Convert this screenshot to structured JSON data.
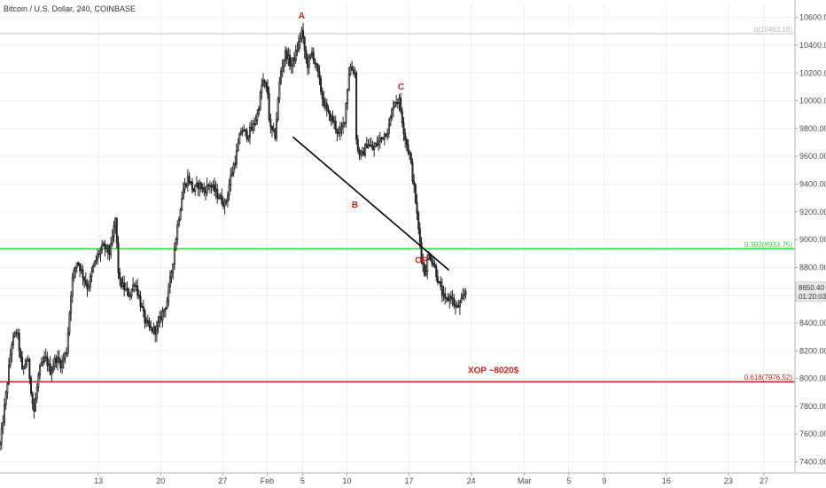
{
  "chart_data": {
    "type": "candlestick",
    "title": "Bitcoin / U.S. Dollar, 240, COINBASE",
    "ylim": [
      7320,
      10700
    ],
    "y_ticks": [
      7400,
      7600,
      7800,
      8000,
      8200,
      8400,
      8600,
      8800,
      9000,
      9200,
      9400,
      9600,
      9800,
      10000,
      10200,
      10400,
      10600
    ],
    "y_tick_labels": [
      "7400.00",
      "7600.00",
      "7800.00",
      "8000.00",
      "8200.00",
      "8400.00",
      "8600.00",
      "8800.00",
      "9000.00",
      "9200.00",
      "9400.00",
      "9600.00",
      "9800.00",
      "10000.00",
      "10200.00",
      "10400.00",
      "10600.00"
    ],
    "x_tick_labels": [
      "13",
      "20",
      "27",
      "Feb",
      "5",
      "10",
      "17",
      "24",
      "Mar",
      "5",
      "9",
      "16",
      "23",
      "27"
    ],
    "x_tick_days": [
      12,
      19,
      26,
      31,
      35,
      40,
      47,
      54,
      60,
      65,
      69,
      76,
      83,
      87
    ],
    "x_range_days": [
      0.9,
      90.5
    ],
    "price_path": [
      [
        0.9,
        7520
      ],
      [
        1.6,
        7900
      ],
      [
        2.2,
        8250
      ],
      [
        2.8,
        8350
      ],
      [
        3.4,
        8050
      ],
      [
        4.0,
        8150
      ],
      [
        4.7,
        7750
      ],
      [
        5.3,
        8050
      ],
      [
        6.0,
        8150
      ],
      [
        6.6,
        8050
      ],
      [
        7.2,
        8150
      ],
      [
        7.8,
        8100
      ],
      [
        8.4,
        8200
      ],
      [
        9.0,
        8700
      ],
      [
        9.6,
        8850
      ],
      [
        10.2,
        8750
      ],
      [
        10.8,
        8650
      ],
      [
        11.4,
        8800
      ],
      [
        12.0,
        8900
      ],
      [
        12.6,
        8950
      ],
      [
        13.3,
        8900
      ],
      [
        13.9,
        9150
      ],
      [
        14.3,
        8700
      ],
      [
        14.9,
        8650
      ],
      [
        15.5,
        8600
      ],
      [
        16.1,
        8700
      ],
      [
        16.7,
        8550
      ],
      [
        17.3,
        8400
      ],
      [
        17.9,
        8350
      ],
      [
        18.5,
        8350
      ],
      [
        19.1,
        8450
      ],
      [
        19.7,
        8550
      ],
      [
        20.3,
        8800
      ],
      [
        20.9,
        9100
      ],
      [
        21.5,
        9350
      ],
      [
        22.1,
        9450
      ],
      [
        22.7,
        9350
      ],
      [
        23.3,
        9400
      ],
      [
        23.9,
        9350
      ],
      [
        24.5,
        9400
      ],
      [
        25.1,
        9350
      ],
      [
        25.7,
        9300
      ],
      [
        26.3,
        9250
      ],
      [
        26.9,
        9450
      ],
      [
        27.5,
        9600
      ],
      [
        28.1,
        9800
      ],
      [
        28.7,
        9750
      ],
      [
        29.3,
        9800
      ],
      [
        29.9,
        9900
      ],
      [
        30.5,
        10150
      ],
      [
        31.1,
        10050
      ],
      [
        31.3,
        9800
      ],
      [
        31.9,
        9750
      ],
      [
        32.5,
        10200
      ],
      [
        33.1,
        10350
      ],
      [
        33.7,
        10250
      ],
      [
        34.3,
        10350
      ],
      [
        34.9,
        10500
      ],
      [
        35.5,
        10250
      ],
      [
        36.1,
        10350
      ],
      [
        36.7,
        10200
      ],
      [
        37.3,
        10000
      ],
      [
        37.9,
        9900
      ],
      [
        38.5,
        9850
      ],
      [
        39.1,
        9750
      ],
      [
        39.7,
        9850
      ],
      [
        40.3,
        10250
      ],
      [
        40.9,
        10200
      ],
      [
        41.1,
        9650
      ],
      [
        41.7,
        9600
      ],
      [
        42.3,
        9700
      ],
      [
        42.9,
        9650
      ],
      [
        43.5,
        9700
      ],
      [
        44.1,
        9750
      ],
      [
        44.7,
        9800
      ],
      [
        45.3,
        10000
      ],
      [
        45.9,
        10000
      ],
      [
        46.5,
        9750
      ],
      [
        47.1,
        9600
      ],
      [
        47.7,
        9300
      ],
      [
        48.1,
        9050
      ],
      [
        48.7,
        8750
      ],
      [
        49.3,
        8900
      ],
      [
        49.9,
        8800
      ],
      [
        50.5,
        8650
      ],
      [
        51.1,
        8550
      ],
      [
        51.7,
        8600
      ],
      [
        52.3,
        8500
      ],
      [
        52.9,
        8550
      ],
      [
        53.5,
        8650
      ]
    ],
    "annotations": [
      {
        "text": "A",
        "day": 34.9,
        "price": 10590
      },
      {
        "text": "B",
        "day": 40.9,
        "price": 9230
      },
      {
        "text": "C",
        "day": 46.1,
        "price": 10080
      },
      {
        "text": "OP",
        "day": 48.4,
        "price": 8830
      },
      {
        "text": "XOP ~8020$",
        "day": 56.5,
        "price": 8040
      }
    ],
    "trendline": {
      "from": [
        33.9,
        9740
      ],
      "to": [
        51.5,
        8780
      ]
    },
    "fib_levels": [
      {
        "label": "0(10483.16)",
        "price": 10483.16,
        "color": "#c8c8c8"
      },
      {
        "label": "0.382(8933.75)",
        "price": 8933.75,
        "color": "#33d633"
      },
      {
        "label": "0.618(7976.52)",
        "price": 7976.52,
        "color": "#e01b1b"
      }
    ],
    "last_price": {
      "price": 8650.4,
      "label": "8650.40",
      "countdown": "01:20:03"
    },
    "grid": true
  }
}
